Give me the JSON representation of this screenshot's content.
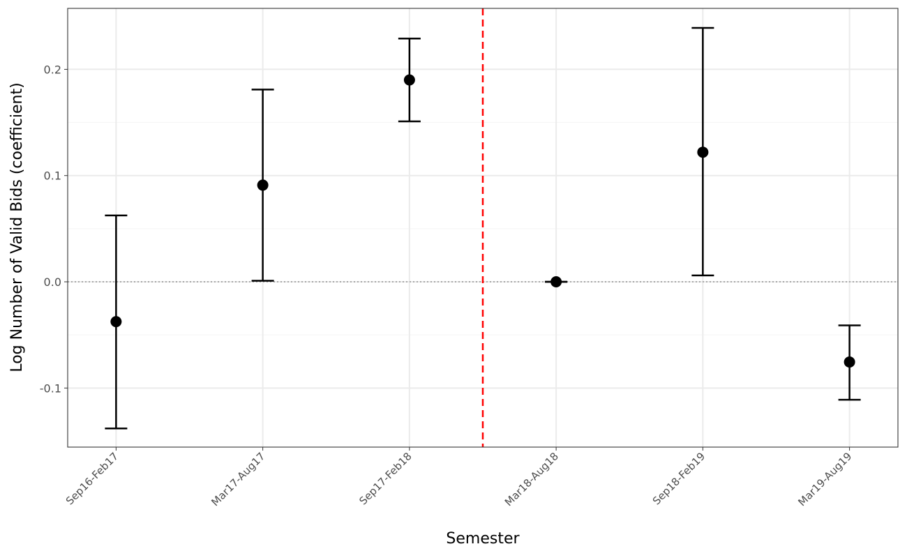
{
  "chart_data": {
    "type": "scatter",
    "subtype": "point-errorbar",
    "title": "",
    "xlabel": "Semester",
    "ylabel": "Log Number of Valid Bids (coefficient)",
    "categories": [
      "Sep16-Feb17",
      "Mar17-Aug17",
      "Sep17-Feb18",
      "Mar18-Aug18",
      "Sep18-Feb19",
      "Mar19-Aug19"
    ],
    "values": [
      -0.0375,
      0.091,
      0.19,
      0.0,
      0.122,
      -0.0755
    ],
    "lower": [
      -0.138,
      0.001,
      0.151,
      0.0,
      0.006,
      -0.111
    ],
    "upper": [
      0.0625,
      0.181,
      0.229,
      0.0,
      0.239,
      -0.041
    ],
    "ylim": [
      -0.1556,
      0.2574
    ],
    "xlim": [
      0.67,
      6.33
    ],
    "yticks": [
      -0.1,
      0.0,
      0.1,
      0.2
    ],
    "ytick_labels": [
      "-0.1",
      "0.0",
      "0.1",
      "0.2"
    ],
    "reference_hline": 0.0,
    "reference_vline": 3.5,
    "colors": {
      "points": "#000000",
      "vline": "#ff0000",
      "hline": "#808080",
      "grid": "#ebebeb"
    },
    "grid": true
  }
}
